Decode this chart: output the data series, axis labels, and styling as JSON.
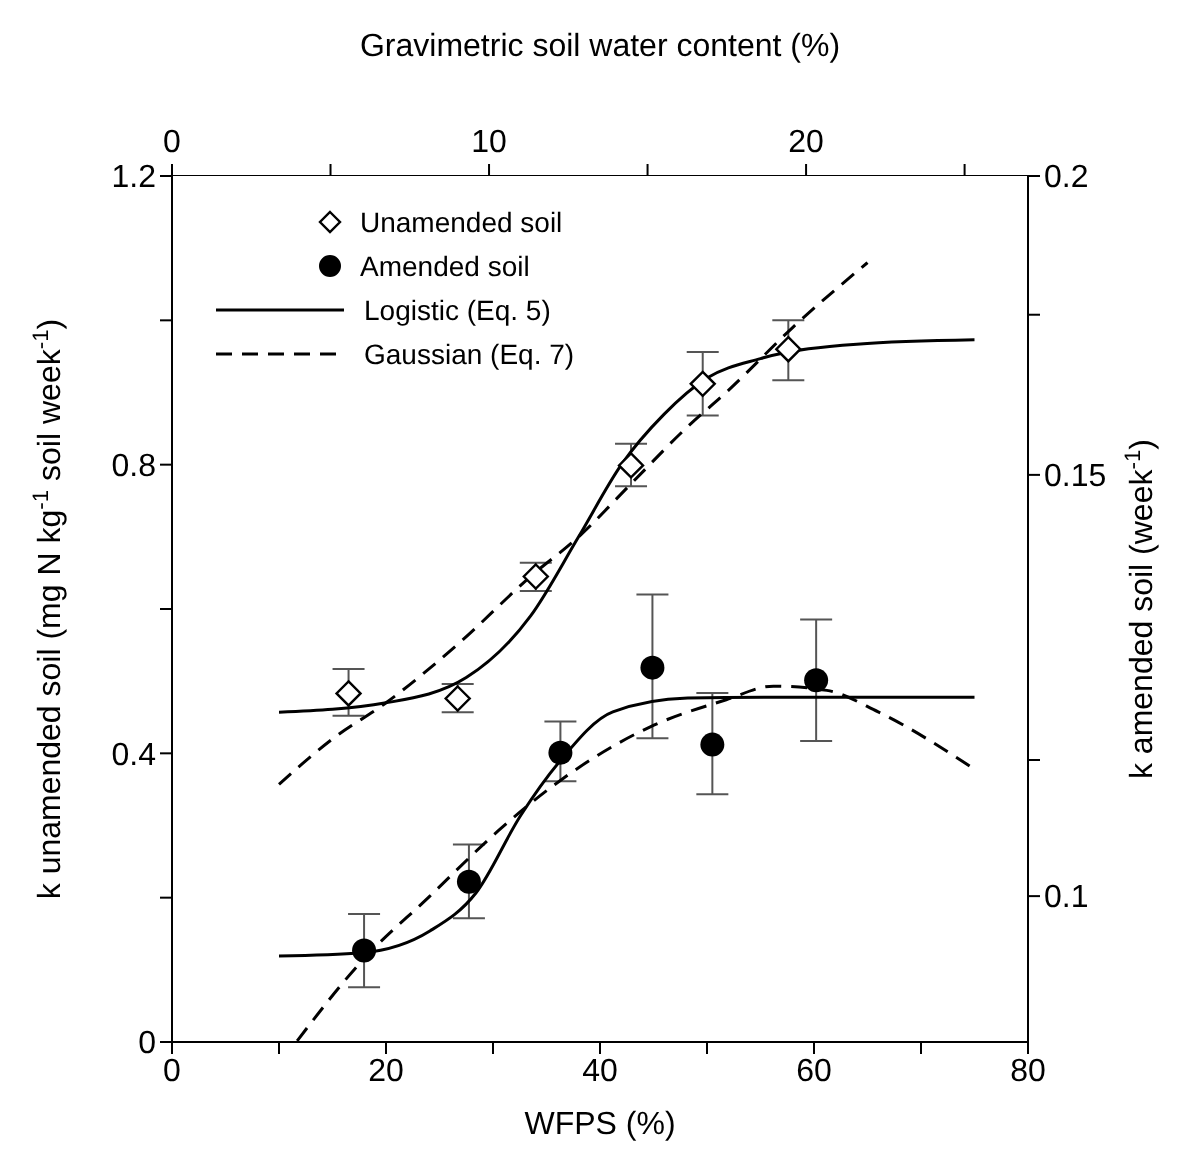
{
  "chart_data": {
    "type": "scatter",
    "xlabel": "WFPS (%)",
    "x2label": "Gravimetric soil water content (%)",
    "ylabel": "k unamended soil (mg N kg$^{-1}$ soil week$^{-1}$)",
    "y2label": "k amended soil (week$^{-1}$)",
    "xlim": [
      0,
      80
    ],
    "xticks": [
      0,
      {
        "value": 10,
        "label": null
      },
      20,
      {
        "value": 30,
        "label": null
      },
      40,
      {
        "value": 50,
        "label": null
      },
      60,
      {
        "value": 70,
        "label": null
      },
      80
    ],
    "x2lim": [
      0,
      27
    ],
    "x2ticks": [
      0,
      {
        "value": 5,
        "label": null
      },
      10,
      {
        "value": 15,
        "label": null
      },
      20,
      {
        "value": 25,
        "label": null
      }
    ],
    "ylim": [
      0,
      1.2
    ],
    "yticks": [
      0,
      {
        "value": 0.2,
        "label": null
      },
      0.4,
      {
        "value": 0.6,
        "label": null
      },
      0.8,
      {
        "value": 1.0,
        "label": null
      },
      1.2
    ],
    "y2lim": [
      0.0869,
      0.2
    ],
    "y2ticks": [
      {
        "value": 0.114,
        "label": null
      },
      0.1,
      0.15,
      {
        "value": 0.175,
        "label": null
      },
      0.2
    ],
    "log": "y2",
    "grid": false,
    "legend": "top left",
    "series": [
      {
        "name": "Unamended soil",
        "type": "scatter",
        "marker": "diamond",
        "color": "#000000",
        "axis": "y",
        "x": [
          16.5,
          26.7,
          34.0,
          42.9,
          49.6,
          57.6
        ],
        "values": [
          0.483,
          0.476,
          0.645,
          0.799,
          0.912,
          0.96
        ],
        "errors": [
          [
            0.452,
            0.517
          ],
          [
            0.457,
            0.496
          ],
          [
            0.625,
            0.664
          ],
          [
            0.77,
            0.829
          ],
          [
            0.868,
            0.956
          ],
          [
            0.917,
            1.0
          ]
        ]
      },
      {
        "name": "Amended soil",
        "type": "scatter",
        "marker": "circle",
        "color": "#000000",
        "axis": "y2",
        "x": [
          17.95,
          27.75,
          36.3,
          44.9,
          50.5,
          60.2
        ],
        "values": [
          0.0949,
          0.1014,
          0.1148,
          0.1246,
          0.1157,
          0.1231
        ],
        "errors": [
          [
            0.0916,
            0.0983
          ],
          [
            0.0979,
            0.1051
          ],
          [
            0.1117,
            0.1183
          ],
          [
            0.1164,
            0.1337
          ],
          [
            0.1103,
            0.1216
          ],
          [
            0.1161,
            0.1305
          ]
        ]
      },
      {
        "name": "Logistic (Eq. 5)",
        "type": "line",
        "marker": "none",
        "line_style": "solid",
        "color": "#000000",
        "axis": "y",
        "x": [
          10,
          20,
          27.5,
          33.5,
          38,
          42,
          46,
          50,
          55,
          64,
          75
        ],
        "values": [
          0.457,
          0.47,
          0.505,
          0.59,
          0.7,
          0.8,
          0.87,
          0.92,
          0.947,
          0.967,
          0.973
        ]
      },
      {
        "name": "Gaussian (Eq. 7)",
        "type": "line",
        "marker": "none",
        "line_style": "dashed",
        "color": "#000000",
        "axis": "y",
        "x": [
          10,
          15,
          20,
          27,
          33.5,
          38,
          43,
          48,
          52,
          58,
          65
        ],
        "values": [
          0.357,
          0.42,
          0.47,
          0.555,
          0.645,
          0.7,
          0.775,
          0.85,
          0.903,
          0.99,
          1.08
        ]
      },
      {
        "type": "line",
        "marker": "none",
        "line_style": "solid",
        "color": "#000000",
        "axis": "y2",
        "x": [
          10,
          17.8,
          24.1,
          28.4,
          32.6,
          36.2,
          41.2,
          48.2,
          55.4,
          75
        ],
        "values": [
          0.0944,
          0.0947,
          0.0967,
          0.1003,
          0.1081,
          0.1138,
          0.1194,
          0.121,
          0.1211,
          0.1211
        ]
      },
      {
        "type": "line",
        "marker": "none",
        "line_style": "dashed",
        "color": "#000000",
        "axis": "y2",
        "x": [
          11.7,
          17.7,
          24.1,
          30.5,
          36.2,
          44.7,
          51.8,
          56.2,
          61.2,
          66,
          75
        ],
        "values": [
          0.087,
          0.0939,
          0.1,
          0.1065,
          0.1117,
          0.1177,
          0.1208,
          0.1224,
          0.1219,
          0.1194,
          0.113
        ]
      }
    ]
  }
}
